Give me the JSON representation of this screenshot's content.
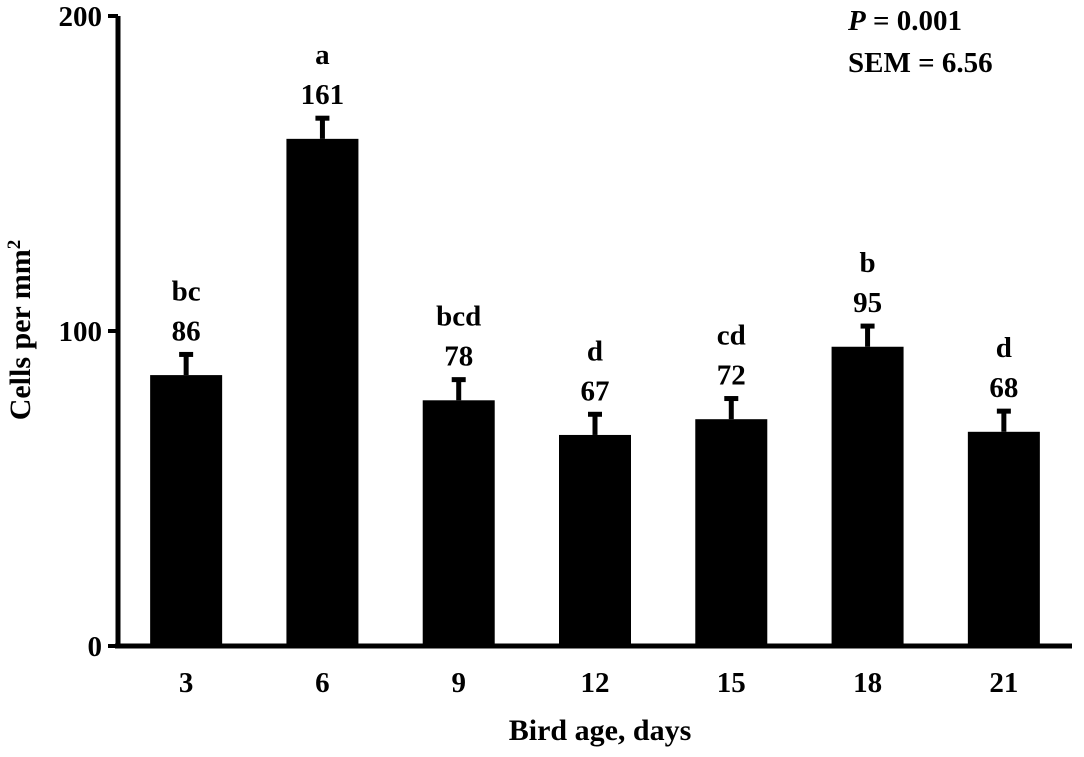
{
  "chart_data": {
    "type": "bar",
    "categories": [
      "3",
      "6",
      "9",
      "12",
      "15",
      "18",
      "21"
    ],
    "values": [
      86,
      161,
      78,
      67,
      72,
      95,
      68
    ],
    "error": [
      6.56,
      6.56,
      6.56,
      6.56,
      6.56,
      6.56,
      6.56
    ],
    "value_labels": [
      "86",
      "161",
      "78",
      "67",
      "72",
      "95",
      "68"
    ],
    "letters": [
      "bc",
      "a",
      "bcd",
      "d",
      "cd",
      "b",
      "d"
    ],
    "xlabel": "Bird age, days",
    "ylabel_main": "Cells per mm",
    "ylabel_sup": "2",
    "ylim": [
      0,
      200
    ],
    "yticks": [
      0,
      100,
      200
    ],
    "ytick_labels": [
      "0",
      "100",
      "200"
    ],
    "annotation": {
      "p_symbol": "P",
      "p_rest": " = 0.001",
      "sem": "SEM = 6.56"
    },
    "bar_color": "#000000",
    "grid": false,
    "legend": "none"
  }
}
